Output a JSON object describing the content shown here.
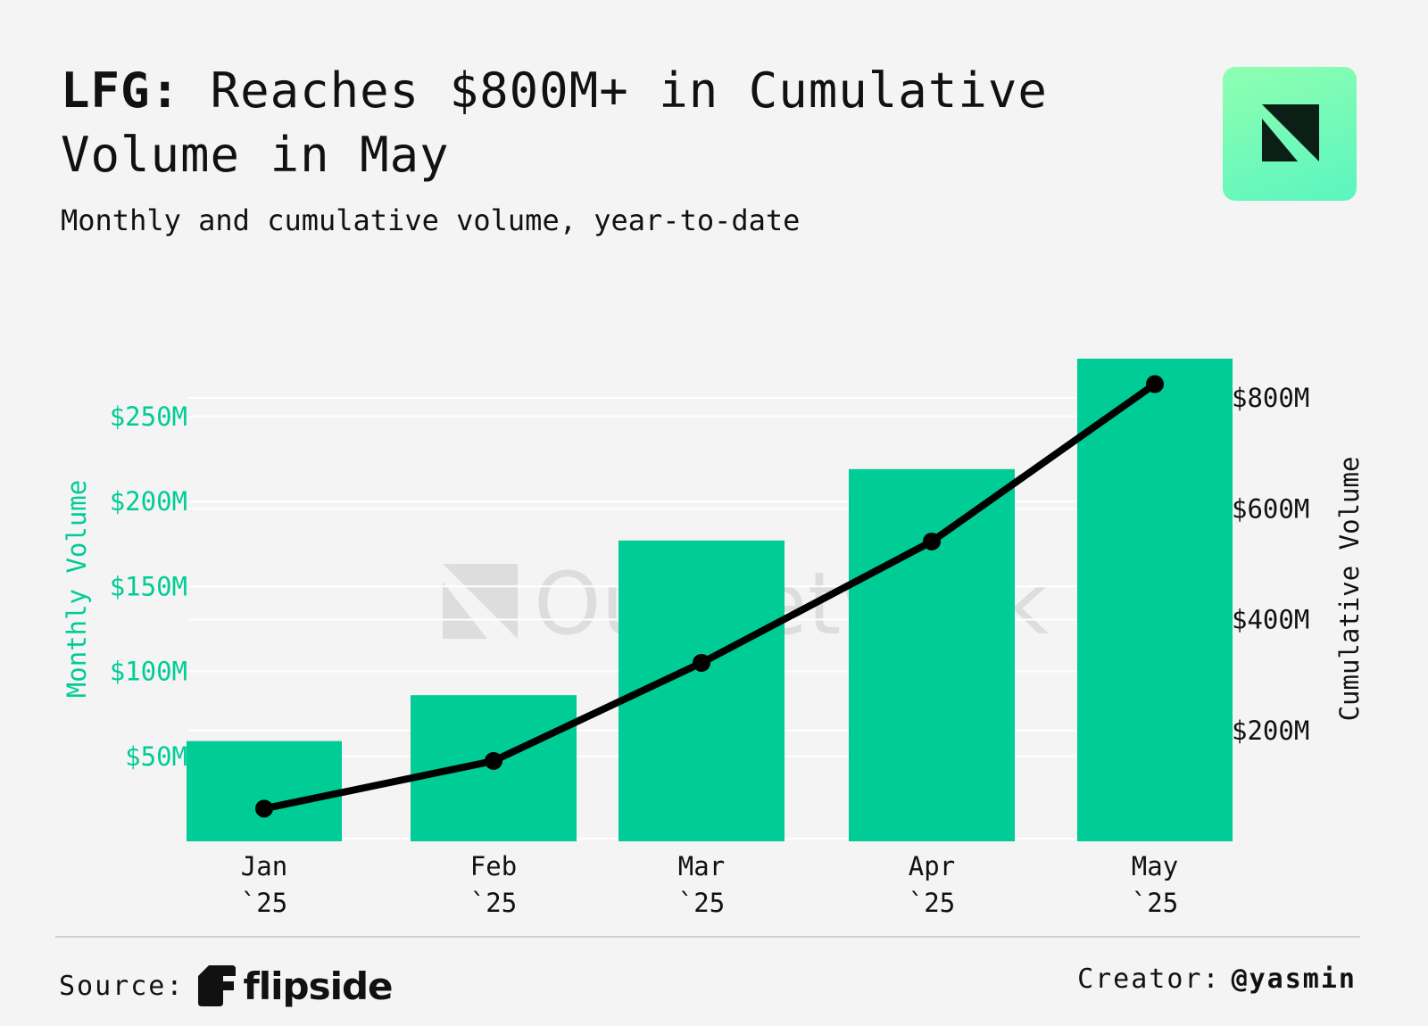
{
  "title_bold": "LFG:",
  "title_rest": "Reaches $800M+ in Cumulative Volume in May",
  "subtitle": "Monthly and cumulative volume, year-to-date",
  "watermark": "OurNetwork",
  "source_label": "Source:",
  "source_name": "flipside",
  "creator_label": "Creator:",
  "creator_handle": "@yasmin",
  "colors": {
    "bar": "#00cc96",
    "line": "#000000",
    "left_axis": "#00cc96",
    "background": "#f4f4f4"
  },
  "chart_data": {
    "type": "bar+line",
    "categories": [
      "Jan `25",
      "Feb `25",
      "Mar `25",
      "Apr `25",
      "May `25"
    ],
    "series": [
      {
        "name": "Monthly Volume",
        "type": "bar",
        "axis": "left",
        "values": [
          59,
          86,
          177,
          219,
          284
        ]
      },
      {
        "name": "Cumulative Volume",
        "type": "line",
        "axis": "right",
        "values": [
          59,
          145,
          322,
          541,
          825
        ]
      }
    ],
    "left_axis": {
      "label": "Monthly Volume",
      "ticks": [
        50,
        100,
        150,
        200,
        250
      ],
      "tick_labels": [
        "$50M",
        "$100M",
        "$150M",
        "$200M",
        "$250M"
      ],
      "range": [
        0,
        284
      ]
    },
    "right_axis": {
      "label": "Cumulative Volume",
      "ticks": [
        200,
        400,
        600,
        800
      ],
      "tick_labels": [
        "$200M",
        "$400M",
        "$600M",
        "$800M"
      ],
      "range": [
        0,
        850
      ]
    },
    "grid": true
  }
}
